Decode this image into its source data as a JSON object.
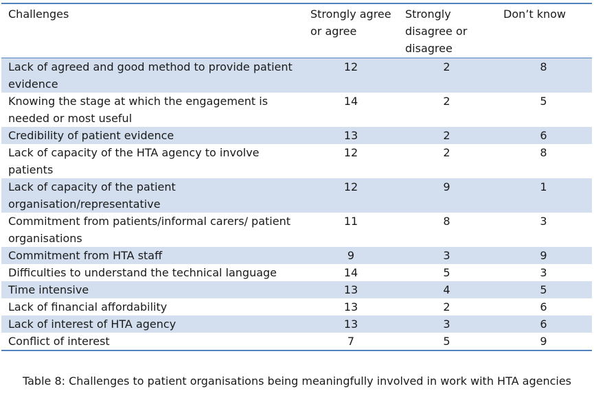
{
  "table": {
    "headers": {
      "challenges": "Challenges",
      "agree": "Strongly agree or agree",
      "disagree": "Strongly disagree or disagree",
      "dont_know": "Don’t know"
    },
    "rows": [
      {
        "challenge": "Lack of agreed and good method to provide patient evidence",
        "agree": "12",
        "disagree": "2",
        "dont_know": "8"
      },
      {
        "challenge": "Knowing the stage at which the engagement is needed or most useful",
        "agree": "14",
        "disagree": "2",
        "dont_know": "5"
      },
      {
        "challenge": "Credibility of patient evidence",
        "agree": "13",
        "disagree": "2",
        "dont_know": "6"
      },
      {
        "challenge": "Lack of capacity of the HTA agency to involve patients",
        "agree": "12",
        "disagree": "2",
        "dont_know": "8"
      },
      {
        "challenge": "Lack of capacity of the patient organisation/representative",
        "agree": "12",
        "disagree": "9",
        "dont_know": "1"
      },
      {
        "challenge": "Commitment from patients/informal carers/ patient organisations",
        "agree": "11",
        "disagree": "8",
        "dont_know": "3"
      },
      {
        "challenge": "Commitment from HTA staff",
        "agree": "9",
        "disagree": "3",
        "dont_know": "9"
      },
      {
        "challenge": "Difficulties to understand the technical language",
        "agree": "14",
        "disagree": "5",
        "dont_know": "3"
      },
      {
        "challenge": "Time intensive",
        "agree": "13",
        "disagree": "4",
        "dont_know": "5"
      },
      {
        "challenge": "Lack of financial affordability",
        "agree": "13",
        "disagree": "2",
        "dont_know": "6"
      },
      {
        "challenge": "Lack of interest of HTA agency",
        "agree": "13",
        "disagree": "3",
        "dont_know": "6"
      },
      {
        "challenge": "Conflict of interest",
        "agree": "7",
        "disagree": "5",
        "dont_know": "9"
      }
    ]
  },
  "caption": "Table 8: Challenges to patient organisations being meaningfully involved in work with HTA agencies",
  "colors": {
    "row_shade": "#d3dfee",
    "rule": "#4f81bd"
  }
}
